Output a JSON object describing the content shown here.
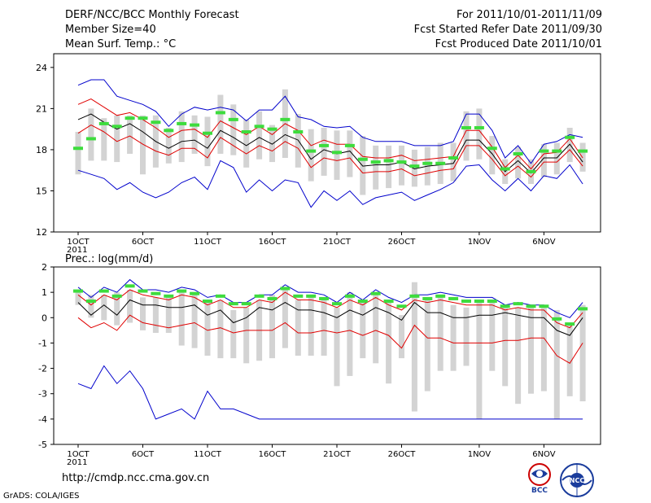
{
  "header": {
    "title": "DERF/NCC/BCC Monthly Forecast",
    "member_size": "Member Size=40",
    "variable": "Mean Surf. Temp.: °C",
    "period": "For 2011/10/01-2011/11/09",
    "fcst_started": "Fcst Started Refer Date 2011/09/30",
    "fcst_produced": "Fcst Produced Date 2011/10/01"
  },
  "footer": {
    "url": "http://cmdp.ncc.cma.gov.cn",
    "grads": "GrADS: COLA/IGES",
    "logo_bcc": "BCC",
    "logo_ncc": "NCC"
  },
  "colors": {
    "max_line": "#0000cc",
    "min_line": "#0000cc",
    "upper_line": "#e00000",
    "lower_line": "#e00000",
    "mean_line": "#000000",
    "bar": "#d3d3d3",
    "obs": "#3ddc3d",
    "median": "#d87000"
  },
  "chart_data": [
    {
      "type": "line",
      "title": "Mean Surf. Temp.: °C",
      "x_tick_labels": [
        "1OCT",
        "6OCT",
        "11OCT",
        "16OCT",
        "21OCT",
        "26OCT",
        "1NOV",
        "6NOV"
      ],
      "x_tick_days": [
        1,
        6,
        11,
        16,
        21,
        26,
        32,
        37
      ],
      "year_label": "2011",
      "ylim": [
        12,
        25
      ],
      "y_ticks": [
        12,
        15,
        18,
        21,
        24
      ],
      "days": [
        1,
        2,
        3,
        4,
        5,
        6,
        7,
        8,
        9,
        10,
        11,
        12,
        13,
        14,
        15,
        16,
        17,
        18,
        19,
        20,
        21,
        22,
        23,
        24,
        25,
        26,
        27,
        28,
        29,
        30,
        31,
        32,
        33,
        34,
        35,
        36,
        37,
        38,
        39,
        40
      ],
      "series": [
        {
          "name": "max",
          "values": [
            22.7,
            23.1,
            23.1,
            21.9,
            21.6,
            21.3,
            20.8,
            19.7,
            20.6,
            21.1,
            20.9,
            21.1,
            20.9,
            20.1,
            20.9,
            20.9,
            21.9,
            20.4,
            20.2,
            19.7,
            19.6,
            19.7,
            18.9,
            18.6,
            18.6,
            18.6,
            18.3,
            18.3,
            18.3,
            18.6,
            20.6,
            20.6,
            19.4,
            17.4,
            18.3,
            17.0,
            18.4,
            18.6,
            19.1,
            18.9
          ]
        },
        {
          "name": "upper",
          "values": [
            21.3,
            21.7,
            21.1,
            20.5,
            20.7,
            20.2,
            19.6,
            18.9,
            19.4,
            19.5,
            18.9,
            20.1,
            19.6,
            19.1,
            19.7,
            19.1,
            19.9,
            19.4,
            18.3,
            18.7,
            18.4,
            18.4,
            17.5,
            17.4,
            17.4,
            17.6,
            17.2,
            17.3,
            17.4,
            17.5,
            19.4,
            19.4,
            18.2,
            16.7,
            17.6,
            16.6,
            17.7,
            17.8,
            18.8,
            17.4
          ]
        },
        {
          "name": "mean",
          "values": [
            20.2,
            20.6,
            20.0,
            19.5,
            19.9,
            19.3,
            18.6,
            18.1,
            18.6,
            18.7,
            18.1,
            19.4,
            18.9,
            18.3,
            18.9,
            18.4,
            19.1,
            18.7,
            17.3,
            18.0,
            17.7,
            17.9,
            16.8,
            16.9,
            16.9,
            17.1,
            16.6,
            16.8,
            16.9,
            17.0,
            18.7,
            18.7,
            17.7,
            16.4,
            17.2,
            16.3,
            17.4,
            17.4,
            18.4,
            17.1
          ]
        },
        {
          "name": "lower",
          "values": [
            19.2,
            19.8,
            19.3,
            18.6,
            19.0,
            18.4,
            17.9,
            17.6,
            18.1,
            18.1,
            17.4,
            18.9,
            18.3,
            17.7,
            18.3,
            17.9,
            18.6,
            18.1,
            16.7,
            17.4,
            17.2,
            17.4,
            16.3,
            16.4,
            16.4,
            16.6,
            16.1,
            16.3,
            16.5,
            16.6,
            18.3,
            18.3,
            17.3,
            16.1,
            16.8,
            16.0,
            17.1,
            17.1,
            18.0,
            16.8
          ]
        },
        {
          "name": "min",
          "values": [
            16.5,
            16.2,
            15.9,
            15.1,
            15.6,
            14.9,
            14.5,
            14.9,
            15.6,
            16.0,
            15.1,
            17.2,
            16.7,
            14.9,
            15.8,
            15.0,
            15.8,
            15.6,
            13.8,
            15.0,
            14.3,
            15.0,
            14.0,
            14.5,
            14.7,
            14.9,
            14.3,
            14.7,
            15.1,
            15.6,
            16.8,
            16.9,
            15.8,
            15.0,
            15.9,
            15.0,
            16.1,
            15.9,
            16.9,
            15.5
          ]
        }
      ],
      "boxes_low": [
        16.2,
        17.2,
        17.2,
        17.1,
        17.7,
        16.2,
        16.7,
        17.0,
        17.1,
        17.7,
        16.8,
        17.7,
        17.6,
        16.7,
        17.3,
        17.1,
        17.4,
        16.7,
        15.7,
        16.1,
        15.8,
        16.0,
        14.7,
        15.1,
        15.2,
        15.4,
        15.3,
        15.4,
        15.5,
        15.7,
        17.2,
        17.3,
        16.2,
        15.5,
        15.9,
        15.5,
        16.0,
        16.2,
        17.1,
        16.4
      ],
      "boxes_high": [
        19.3,
        21.0,
        20.3,
        20.5,
        20.5,
        20.5,
        20.5,
        19.6,
        20.8,
        20.5,
        20.4,
        22.0,
        21.3,
        20.2,
        20.8,
        19.8,
        22.4,
        20.6,
        19.5,
        19.6,
        19.4,
        19.4,
        19.0,
        18.3,
        18.3,
        18.3,
        18.0,
        18.2,
        18.5,
        18.5,
        20.8,
        21.0,
        19.0,
        17.3,
        18.2,
        17.3,
        18.4,
        18.5,
        19.6,
        18.5
      ],
      "obs_markers": [
        18.1,
        18.8,
        19.9,
        19.7,
        20.3,
        20.3,
        20.0,
        19.4,
        19.9,
        19.8,
        19.2,
        20.7,
        20.2,
        19.3,
        19.7,
        19.5,
        20.2,
        19.3,
        17.9,
        18.3,
        17.8,
        18.3,
        17.3,
        17.1,
        17.2,
        17.1,
        16.8,
        17.0,
        17.0,
        17.4,
        19.6,
        19.6,
        18.1,
        16.6,
        17.7,
        16.4,
        17.9,
        17.9,
        18.9,
        17.9
      ]
    },
    {
      "type": "line",
      "title": "Prec.: log(mm/d)",
      "x_tick_labels": [
        "1OCT",
        "6OCT",
        "11OCT",
        "16OCT",
        "21OCT",
        "26OCT",
        "1NOV",
        "6NOV"
      ],
      "x_tick_days": [
        1,
        6,
        11,
        16,
        21,
        26,
        32,
        37
      ],
      "year_label": "2011",
      "ylim": [
        -5,
        2
      ],
      "y_ticks": [
        -5,
        -4,
        -3,
        -2,
        -1,
        0,
        1,
        2
      ],
      "days": [
        1,
        2,
        3,
        4,
        5,
        6,
        7,
        8,
        9,
        10,
        11,
        12,
        13,
        14,
        15,
        16,
        17,
        18,
        19,
        20,
        21,
        22,
        23,
        24,
        25,
        26,
        27,
        28,
        29,
        30,
        31,
        32,
        33,
        34,
        35,
        36,
        37,
        38,
        39,
        40
      ],
      "series": [
        {
          "name": "max",
          "values": [
            1.2,
            0.8,
            1.2,
            1.0,
            1.5,
            1.1,
            1.1,
            1.0,
            1.2,
            1.1,
            0.8,
            0.9,
            0.6,
            0.6,
            0.9,
            0.9,
            1.3,
            1.0,
            1.0,
            0.9,
            0.6,
            1.0,
            0.7,
            1.1,
            0.8,
            0.6,
            0.9,
            0.9,
            1.0,
            0.9,
            0.8,
            0.8,
            0.8,
            0.5,
            0.6,
            0.5,
            0.5,
            0.2,
            0.0,
            0.6
          ]
        },
        {
          "name": "upper",
          "values": [
            0.9,
            0.5,
            0.9,
            0.7,
            1.1,
            0.9,
            0.8,
            0.7,
            0.9,
            0.8,
            0.5,
            0.7,
            0.4,
            0.4,
            0.7,
            0.6,
            1.0,
            0.7,
            0.7,
            0.6,
            0.4,
            0.7,
            0.5,
            0.8,
            0.5,
            0.3,
            0.7,
            0.6,
            0.7,
            0.6,
            0.5,
            0.5,
            0.5,
            0.3,
            0.4,
            0.3,
            0.3,
            -0.2,
            -0.4,
            0.2
          ]
        },
        {
          "name": "mean",
          "values": [
            0.6,
            0.1,
            0.5,
            0.1,
            0.7,
            0.5,
            0.5,
            0.4,
            0.4,
            0.5,
            0.1,
            0.3,
            -0.2,
            0.0,
            0.4,
            0.3,
            0.6,
            0.3,
            0.3,
            0.2,
            0.0,
            0.3,
            0.1,
            0.4,
            0.2,
            -0.1,
            0.6,
            0.2,
            0.2,
            0.0,
            0.0,
            0.1,
            0.1,
            0.2,
            0.1,
            0.0,
            0.0,
            -0.5,
            -0.7,
            0.0
          ]
        },
        {
          "name": "lower",
          "values": [
            0.0,
            -0.4,
            -0.2,
            -0.5,
            0.1,
            -0.2,
            -0.3,
            -0.4,
            -0.3,
            -0.2,
            -0.5,
            -0.4,
            -0.6,
            -0.5,
            -0.5,
            -0.5,
            -0.2,
            -0.6,
            -0.6,
            -0.5,
            -0.6,
            -0.5,
            -0.7,
            -0.5,
            -0.7,
            -1.2,
            -0.3,
            -0.8,
            -0.8,
            -1.0,
            -1.0,
            -1.0,
            -1.0,
            -0.9,
            -0.9,
            -0.8,
            -0.8,
            -1.5,
            -1.8,
            -1.0
          ]
        },
        {
          "name": "min",
          "values": [
            -2.6,
            -2.8,
            -1.9,
            -2.6,
            -2.1,
            -2.8,
            -4.0,
            -3.8,
            -3.6,
            -4.0,
            -2.9,
            -3.6,
            -3.6,
            -3.8,
            -4.0,
            -4.0,
            -4.0,
            -4.0,
            -4.0,
            -4.0,
            -4.0,
            -4.0,
            -4.0,
            -4.0,
            -4.0,
            -4.0,
            -4.0,
            -4.0,
            -4.0,
            -4.0,
            -4.0,
            -4.0,
            -4.0,
            -4.0,
            -4.0,
            -4.0,
            -4.0,
            -4.0,
            -4.0,
            -4.0
          ]
        }
      ],
      "boxes_low": [
        0.5,
        0.0,
        -0.1,
        -0.3,
        -0.2,
        -0.5,
        -0.6,
        -0.6,
        -1.1,
        -1.2,
        -1.5,
        -1.6,
        -1.6,
        -1.8,
        -1.7,
        -1.6,
        -1.2,
        -1.5,
        -1.5,
        -1.5,
        -2.7,
        -2.3,
        -1.6,
        -1.8,
        -2.6,
        -1.6,
        -3.7,
        -2.9,
        -2.1,
        -2.1,
        -1.9,
        -4.0,
        -2.1,
        -2.7,
        -3.4,
        -3.0,
        -2.9,
        -4.0,
        -3.1,
        -3.3
      ],
      "boxes_high": [
        1.0,
        0.9,
        0.9,
        1.0,
        1.1,
        0.8,
        0.8,
        0.9,
        1.0,
        1.0,
        0.6,
        0.7,
        0.3,
        0.4,
        0.7,
        0.9,
        1.2,
        0.7,
        0.9,
        0.7,
        0.4,
        1.0,
        0.6,
        1.0,
        0.6,
        0.1,
        1.4,
        0.8,
        0.9,
        0.5,
        0.4,
        0.7,
        0.6,
        0.4,
        0.4,
        0.5,
        0.5,
        0.3,
        -0.2,
        0.5
      ]
    }
  ]
}
